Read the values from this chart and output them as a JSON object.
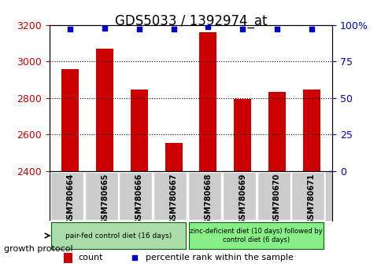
{
  "title": "GDS5033 / 1392974_at",
  "samples": [
    "GSM780664",
    "GSM780665",
    "GSM780666",
    "GSM780667",
    "GSM780668",
    "GSM780669",
    "GSM780670",
    "GSM780671"
  ],
  "counts": [
    2960,
    3070,
    2845,
    2555,
    3160,
    2795,
    2835,
    2845
  ],
  "percentile_ranks": [
    97,
    98,
    97,
    97,
    99,
    97,
    97,
    97
  ],
  "bar_color": "#cc0000",
  "percentile_color": "#0000cc",
  "ylim_left": [
    2400,
    3200
  ],
  "yticks_left": [
    2400,
    2600,
    2800,
    3000,
    3200
  ],
  "ylim_right": [
    0,
    100
  ],
  "yticks_right": [
    0,
    25,
    50,
    75,
    100
  ],
  "ylabel_left_color": "#cc0000",
  "ylabel_right_color": "#0000cc",
  "group1_samples": 4,
  "group1_label": "pair-fed control diet (16 days)",
  "group2_label": "zinc-deficient diet (10 days) followed by\ncontrol diet (6 days)",
  "group1_color": "#aaddaa",
  "group2_color": "#88ee88",
  "protocol_label": "growth protocol",
  "legend_count_label": "count",
  "legend_percentile_label": "percentile rank within the sample",
  "background_color": "#ffffff",
  "plot_bg_color": "#ffffff",
  "sample_bg_color": "#cccccc",
  "grid_color": "#000000",
  "title_fontsize": 12,
  "tick_fontsize": 9,
  "label_fontsize": 9
}
